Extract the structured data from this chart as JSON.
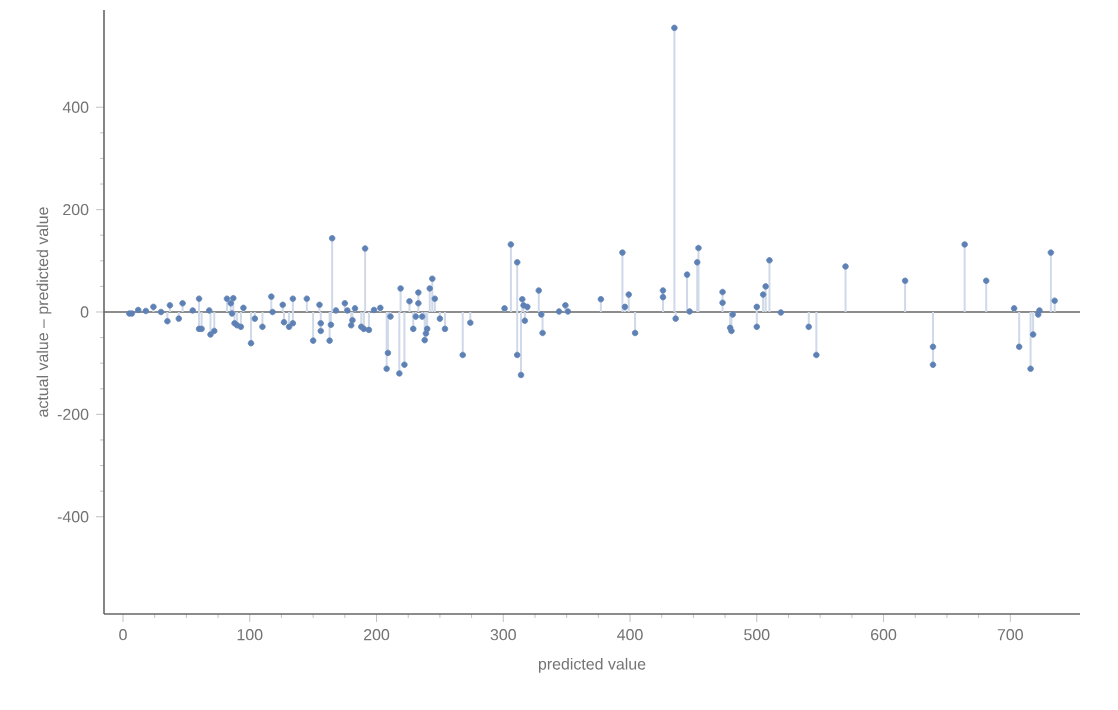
{
  "chart_data": {
    "type": "lollipop",
    "xlabel": "predicted value",
    "ylabel": "actual value – predicted value",
    "x": [
      5,
      7,
      12,
      18,
      24,
      30,
      35,
      37,
      44,
      47,
      55,
      60,
      60,
      62,
      68,
      69,
      72,
      82,
      85,
      86,
      87,
      88,
      90,
      93,
      95,
      101,
      104,
      110,
      117,
      118,
      126,
      127,
      131,
      134,
      134,
      145,
      150,
      155,
      156,
      156,
      163,
      164,
      165,
      168,
      175,
      177,
      180,
      181,
      183,
      188,
      190,
      191,
      194,
      198,
      203,
      208,
      209,
      211,
      218,
      219,
      222,
      226,
      229,
      231,
      233,
      233,
      236,
      238,
      239,
      240,
      242,
      244,
      246,
      250,
      254,
      268,
      274,
      301,
      306,
      311,
      311,
      314,
      315,
      316,
      317,
      319,
      328,
      330,
      331,
      344,
      349,
      351,
      377,
      394,
      396,
      399,
      404,
      426,
      426,
      435,
      436,
      445,
      447,
      453,
      454,
      473,
      473,
      479,
      480,
      481,
      500,
      500,
      505,
      507,
      510,
      519,
      541,
      547,
      570,
      617,
      639,
      639,
      664,
      681,
      703,
      707,
      716,
      718,
      722,
      723,
      732,
      735
    ],
    "values": [
      -3,
      -3,
      4,
      2,
      10,
      0,
      -18,
      13,
      -13,
      17,
      3,
      26,
      -33,
      -33,
      3,
      -44,
      -37,
      26,
      17,
      -3,
      27,
      -22,
      -26,
      -29,
      8,
      -61,
      -13,
      -29,
      30,
      0,
      14,
      -20,
      -29,
      -22,
      26,
      26,
      -56,
      14,
      -22,
      -37,
      -56,
      -25,
      144,
      3,
      17,
      3,
      -26,
      -16,
      7,
      -29,
      -33,
      124,
      -35,
      4,
      8,
      -111,
      -80,
      -9,
      -120,
      46,
      -103,
      21,
      -33,
      -9,
      17,
      38,
      -9,
      -55,
      -42,
      -33,
      46,
      65,
      26,
      -13,
      -33,
      -84,
      -21,
      7,
      132,
      97,
      -84,
      -123,
      25,
      13,
      -17,
      10,
      42,
      -5,
      -41,
      1,
      13,
      1,
      25,
      116,
      10,
      34,
      -41,
      42,
      29,
      555,
      -13,
      73,
      1,
      97,
      125,
      39,
      18,
      -31,
      -37,
      -5,
      10,
      -29,
      34,
      50,
      101,
      -1,
      -29,
      -84,
      89,
      61,
      -68,
      -103,
      132,
      61,
      7,
      -68,
      -111,
      -44,
      -5,
      3,
      116,
      22
    ],
    "color": "#5e81b5",
    "marker": "circle",
    "xlim": [
      -15,
      755
    ],
    "ylim": [
      -590,
      590
    ],
    "xticks": [
      0,
      100,
      200,
      300,
      400,
      500,
      600,
      700
    ],
    "yticks": [
      -400,
      -200,
      0,
      200,
      400
    ],
    "ref_lines": [
      {
        "axis": "y",
        "value": 0,
        "color": "#666666"
      }
    ]
  }
}
